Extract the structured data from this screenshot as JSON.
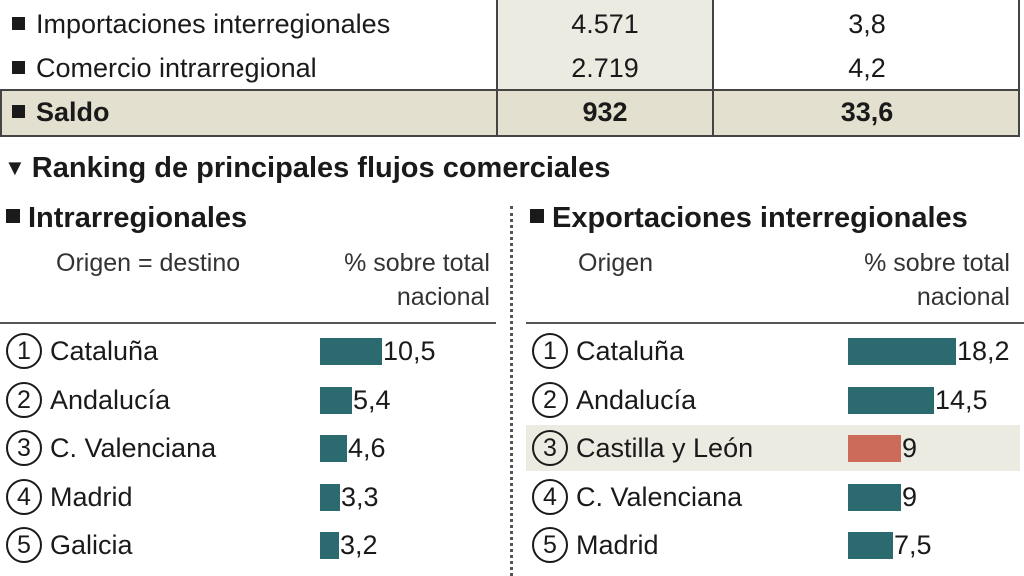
{
  "summary": {
    "rows": [
      {
        "label": "Importaciones interregionales",
        "value": "4.571",
        "pct": "3,8"
      },
      {
        "label": "Comercio intrarregional",
        "value": "2.719",
        "pct": "4,2"
      },
      {
        "label": "Saldo",
        "value": "932",
        "pct": "33,6"
      }
    ]
  },
  "ranking": {
    "title": "Ranking de principales flujos comerciales",
    "title_icon": "triangle-down-icon"
  },
  "colors": {
    "bar": "#2b6b6f",
    "highlight_bar": "#cd6b5a",
    "highlight_row": "#ecebe2",
    "saldo_row": "#e3e0cf",
    "value_column": "#ecebe2"
  },
  "chart_data": [
    {
      "type": "bar",
      "orientation": "horizontal",
      "title": "Intrarregionales",
      "col_label": "Origen = destino",
      "col_value": "% sobre total nacional",
      "ranks": [
        "1",
        "2",
        "3",
        "4",
        "5"
      ],
      "categories": [
        "Cataluña",
        "Andalucía",
        "C. Valenciana",
        "Madrid",
        "Galicia"
      ],
      "values": [
        10.5,
        5.4,
        4.6,
        3.3,
        3.2
      ],
      "value_labels": [
        "10,5",
        "5,4",
        "4,6",
        "3,3",
        "3,2"
      ],
      "highlight": -1,
      "xlim": [
        0,
        18.2
      ]
    },
    {
      "type": "bar",
      "orientation": "horizontal",
      "title": "Exportaciones interregionales",
      "col_label": "Origen",
      "col_value": "% sobre total nacional",
      "ranks": [
        "1",
        "2",
        "3",
        "4",
        "5"
      ],
      "categories": [
        "Cataluña",
        "Andalucía",
        "Castilla y León",
        "C. Valenciana",
        "Madrid"
      ],
      "values": [
        18.2,
        14.5,
        9,
        9,
        7.5
      ],
      "value_labels": [
        "18,2",
        "14,5",
        "9",
        "9",
        "7,5"
      ],
      "highlight": 2,
      "xlim": [
        0,
        18.2
      ]
    }
  ]
}
